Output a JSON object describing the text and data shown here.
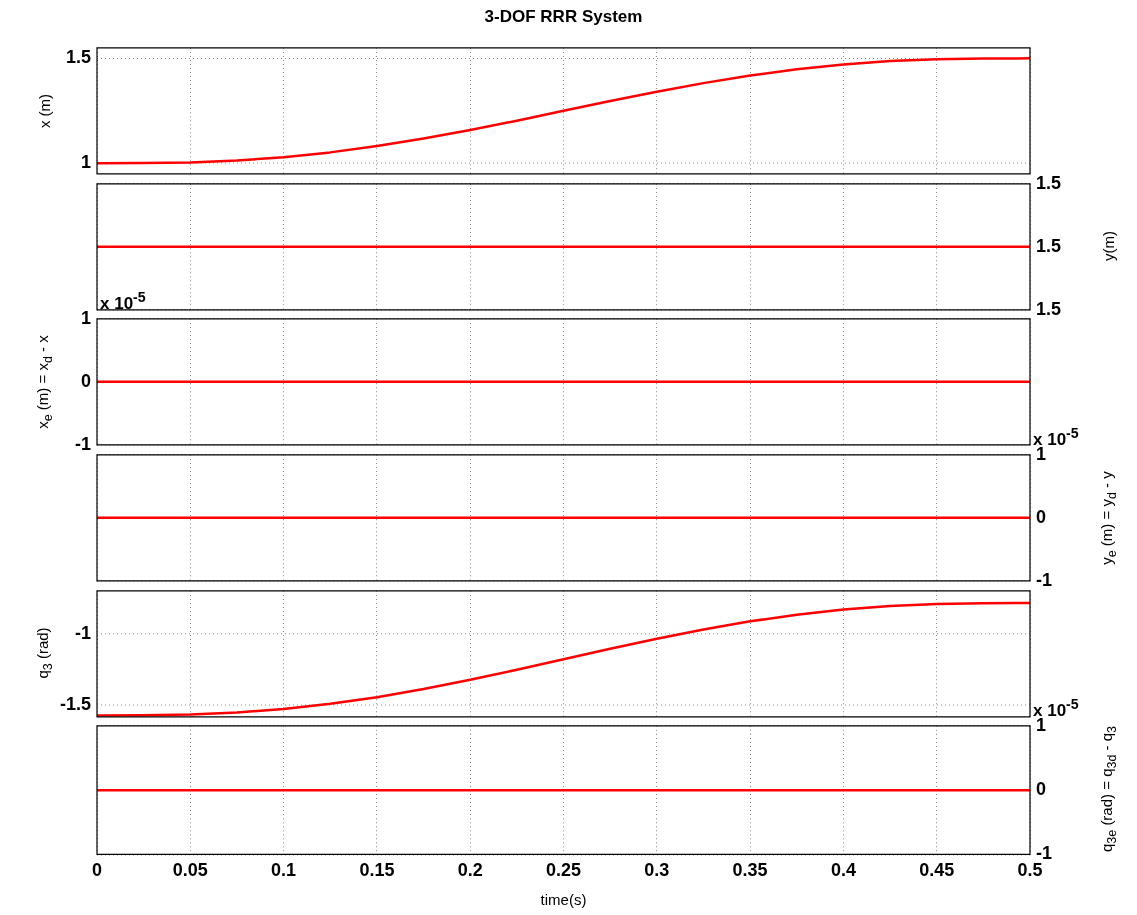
{
  "chart_data": [
    {
      "type": "line",
      "title": "3-DOF RRR System",
      "ylabel": "x (m)",
      "xlim": [
        0,
        0.5
      ],
      "xticks": [
        0,
        0.05,
        0.1,
        0.15,
        0.2,
        0.25,
        0.3,
        0.35,
        0.4,
        0.45,
        0.5
      ],
      "ylim": [
        0.95,
        1.55
      ],
      "yticks": [
        1,
        1.5
      ],
      "grid": true,
      "tick_labels": "y",
      "series": [
        {
          "color": "#ff0000",
          "x": [
            0,
            0.025,
            0.05,
            0.075,
            0.1,
            0.125,
            0.15,
            0.175,
            0.2,
            0.225,
            0.25,
            0.275,
            0.3,
            0.325,
            0.35,
            0.375,
            0.4,
            0.425,
            0.45,
            0.475,
            0.5
          ],
          "values": [
            1,
            1.001,
            1.004,
            1.013,
            1.029,
            1.052,
            1.082,
            1.118,
            1.159,
            1.203,
            1.25,
            1.297,
            1.341,
            1.382,
            1.418,
            1.448,
            1.471,
            1.487,
            1.496,
            1.499,
            1.5
          ]
        }
      ]
    },
    {
      "type": "line",
      "y2label": "y(m)",
      "xlim": [
        0,
        0.5
      ],
      "xticks": [
        0,
        0.05,
        0.1,
        0.15,
        0.2,
        0.25,
        0.3,
        0.35,
        0.4,
        0.45,
        0.5
      ],
      "y2lim": [
        1.4999,
        1.5001
      ],
      "y2ticks": [
        {
          "value": 1.5001,
          "label": "1.5"
        },
        1.5,
        {
          "value": 1.4999,
          "label": "1.5"
        }
      ],
      "grid": true,
      "tick_labels": "y",
      "series": [
        {
          "color": "#ff0000",
          "axis": "y2",
          "x": [
            0,
            0.5
          ],
          "values": [
            1.5,
            1.5
          ]
        }
      ]
    },
    {
      "type": "line",
      "ylabel": "x$_{e}$ (m) = x$_{d}$ - x",
      "annotations": [
        "x 10$^{-5}$"
      ],
      "xlim": [
        0,
        0.5
      ],
      "xticks": [
        0,
        0.05,
        0.1,
        0.15,
        0.2,
        0.25,
        0.3,
        0.35,
        0.4,
        0.45,
        0.5
      ],
      "ylim": [
        -1,
        1
      ],
      "yticks": [
        -1,
        0,
        1
      ],
      "grid": true,
      "tick_labels": "y",
      "series": [
        {
          "color": "#ff0000",
          "x": [
            0,
            0.5
          ],
          "values": [
            0,
            0
          ]
        }
      ]
    },
    {
      "type": "line",
      "y2label": "y$_{e}$ (m) = y$_{d}$ - y",
      "annotations": [
        "x 10$^{-5}$"
      ],
      "xlim": [
        0,
        0.5
      ],
      "xticks": [
        0,
        0.05,
        0.1,
        0.15,
        0.2,
        0.25,
        0.3,
        0.35,
        0.4,
        0.45,
        0.5
      ],
      "y2lim": [
        -1,
        1
      ],
      "y2ticks": [
        -1,
        0,
        1
      ],
      "grid": true,
      "tick_labels": "y",
      "series": [
        {
          "color": "#ff0000",
          "axis": "y2",
          "x": [
            0,
            0.5
          ],
          "values": [
            0,
            0
          ]
        }
      ]
    },
    {
      "type": "line",
      "ylabel": "q$_{3}$ (rad)",
      "xlim": [
        0,
        0.5
      ],
      "xticks": [
        0,
        0.05,
        0.1,
        0.15,
        0.2,
        0.25,
        0.3,
        0.35,
        0.4,
        0.45,
        0.5
      ],
      "ylim": [
        -1.58,
        -0.7
      ],
      "yticks": [
        -1.5,
        -1
      ],
      "grid": true,
      "tick_labels": "y",
      "series": [
        {
          "color": "#ff0000",
          "x": [
            0,
            0.025,
            0.05,
            0.075,
            0.1,
            0.125,
            0.15,
            0.175,
            0.2,
            0.225,
            0.25,
            0.275,
            0.3,
            0.325,
            0.35,
            0.375,
            0.4,
            0.425,
            0.45,
            0.475,
            0.5
          ],
          "values": [
            -1.571,
            -1.57,
            -1.564,
            -1.55,
            -1.525,
            -1.489,
            -1.443,
            -1.386,
            -1.321,
            -1.251,
            -1.178,
            -1.105,
            -1.035,
            -0.97,
            -0.913,
            -0.867,
            -0.831,
            -0.806,
            -0.792,
            -0.786,
            -0.785
          ]
        }
      ]
    },
    {
      "type": "line",
      "xlabel": "time(s)",
      "y2label": "q$_{3e}$ (rad) = q$_{3d}$ - q$_{3}$",
      "annotations": [
        "x 10$^{-5}$"
      ],
      "xlim": [
        0,
        0.5
      ],
      "xticks": [
        0,
        0.05,
        0.1,
        0.15,
        0.2,
        0.25,
        0.3,
        0.35,
        0.4,
        0.45,
        0.5
      ],
      "y2lim": [
        -1,
        1
      ],
      "y2ticks": [
        -1,
        0,
        1
      ],
      "grid": true,
      "series": [
        {
          "color": "#ff0000",
          "axis": "y2",
          "x": [
            0,
            0.5
          ],
          "values": [
            0,
            0
          ]
        }
      ]
    }
  ]
}
